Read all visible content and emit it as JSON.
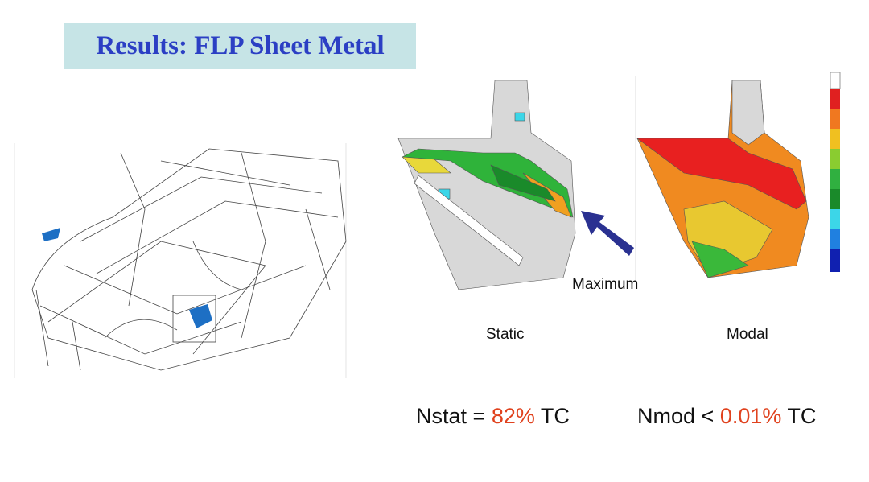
{
  "slide": {
    "title": "Results: FLP Sheet Metal",
    "annotation": "Maximum",
    "captions": [
      "Static",
      "Modal"
    ],
    "results": [
      {
        "lead": "Nstat =",
        "value": "82%",
        "unit": "TC"
      },
      {
        "lead": "Nmod <",
        "value": "0.01%",
        "unit": "TC"
      }
    ]
  }
}
